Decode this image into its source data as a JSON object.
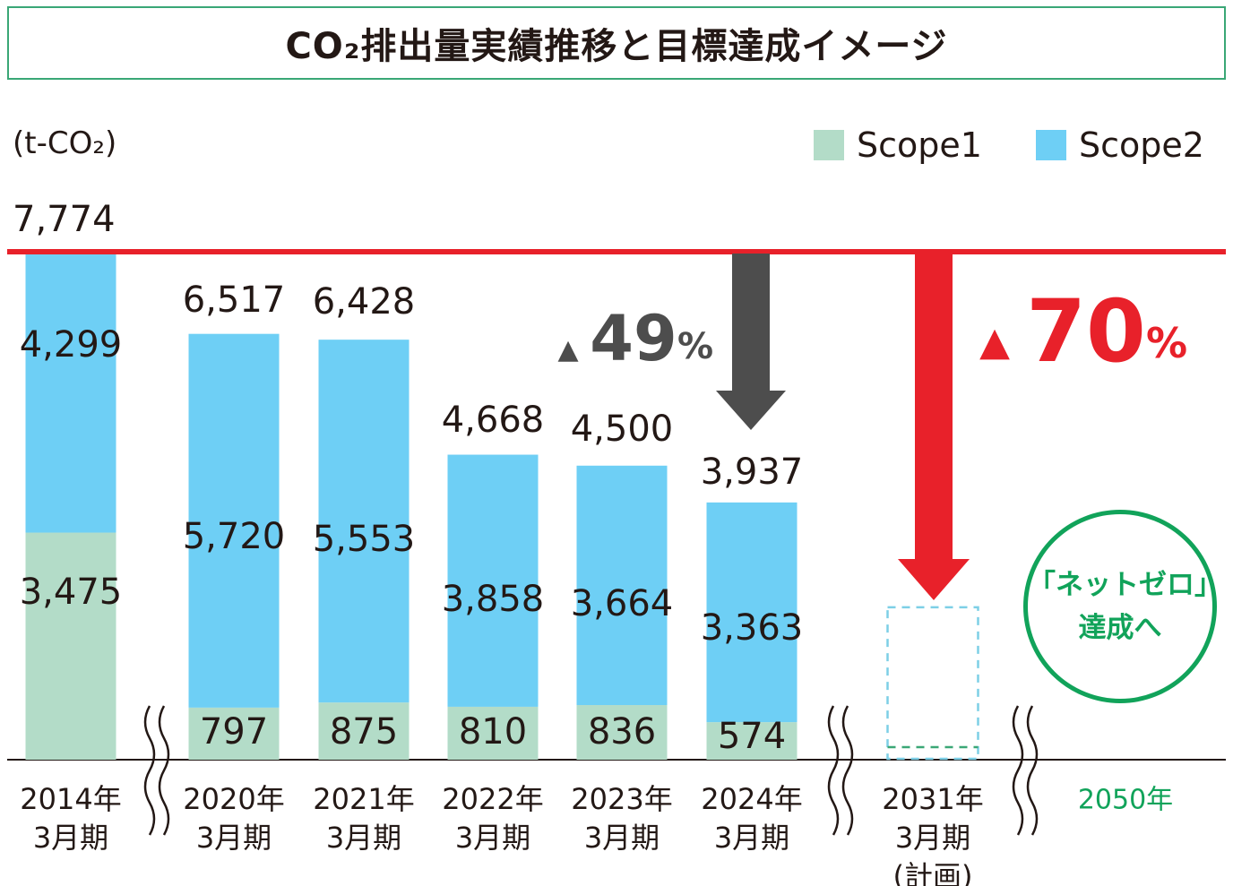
{
  "title": "CO₂排出量実績推移と目標達成イメージ",
  "unit": "(t-CO₂)",
  "legend": {
    "scope1": "Scope1",
    "scope2": "Scope2"
  },
  "colors": {
    "scope1": "#b3dcc8",
    "scope2": "#6ecff5",
    "baseline": "#e8212a",
    "reduction_arrow": "#4d4d4d",
    "target_arrow": "#e8212a",
    "netzero": "#11a35a",
    "plan_box": "#7dcfe6",
    "axis": "#231815"
  },
  "baseline_label": "7,774",
  "reduction_actual": {
    "marker": "▲",
    "value": "49",
    "unit": "%"
  },
  "reduction_target": {
    "marker": "▲",
    "value": "70",
    "unit": "%"
  },
  "netzero": {
    "line1": "「ネットゼロ」",
    "line2": "達成へ"
  },
  "chart_data": {
    "type": "bar",
    "stacked": true,
    "categories": [
      "2014年\n3月期",
      "2020年\n3月期",
      "2021年\n3月期",
      "2022年\n3月期",
      "2023年\n3月期",
      "2024年\n3月期",
      "2031年\n3月期\n(計画)",
      "2050年"
    ],
    "series": [
      {
        "name": "Scope1",
        "values": [
          3475,
          797,
          875,
          810,
          836,
          574,
          null,
          null
        ],
        "labels": [
          "3,475",
          "797",
          "875",
          "810",
          "836",
          "574",
          "",
          ""
        ]
      },
      {
        "name": "Scope2",
        "values": [
          4299,
          5720,
          5553,
          3858,
          3664,
          3363,
          null,
          null
        ],
        "labels": [
          "4,299",
          "5,720",
          "5,553",
          "3,858",
          "3,664",
          "3,363",
          "",
          ""
        ]
      }
    ],
    "totals": [
      7774,
      6517,
      6428,
      4668,
      4500,
      3937,
      null,
      null
    ],
    "total_labels": [
      "",
      "6,517",
      "6,428",
      "4,668",
      "4,500",
      "3,937",
      "",
      ""
    ],
    "planned_total": 2332,
    "ylim": [
      0,
      7774
    ],
    "axis_breaks": true,
    "grid": false,
    "legend_position": "top-right"
  }
}
